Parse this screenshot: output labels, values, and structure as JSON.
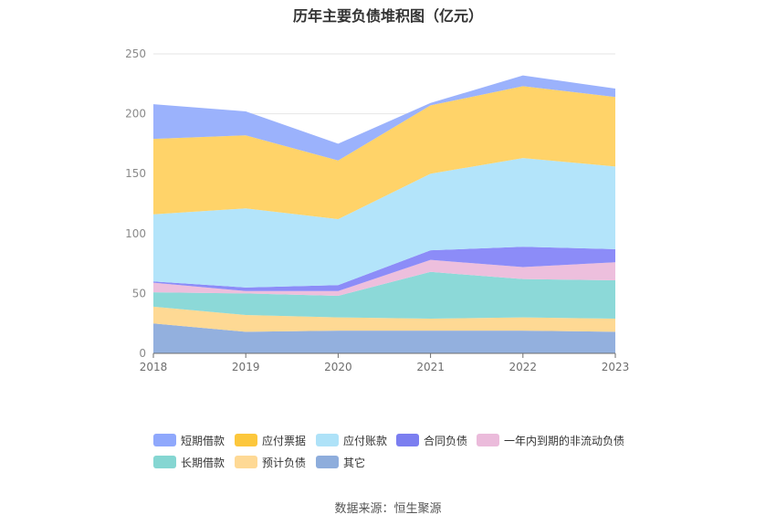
{
  "chart_data": {
    "type": "area",
    "stacked": true,
    "title": "历年主要负债堆积图（亿元）",
    "categories": [
      "2018",
      "2019",
      "2020",
      "2021",
      "2022",
      "2023"
    ],
    "ylim": [
      0,
      250
    ],
    "yticks": [
      0,
      50,
      100,
      150,
      200,
      250
    ],
    "grid": true,
    "legend_position": "bottom",
    "series": [
      {
        "name": "其它",
        "color": "#93b0de",
        "values": [
          25,
          18,
          19,
          19,
          19,
          18
        ]
      },
      {
        "name": "预计负债",
        "color": "#fed994",
        "values": [
          14,
          14,
          11,
          10,
          11,
          11
        ]
      },
      {
        "name": "长期借款",
        "color": "#8cd9d8",
        "values": [
          12,
          18,
          18,
          39,
          32,
          32
        ]
      },
      {
        "name": "一年内到期的非流动负债",
        "color": "#edbfdd",
        "values": [
          8,
          2,
          4,
          10,
          10,
          15
        ]
      },
      {
        "name": "合同负债",
        "color": "#8c8cf8",
        "values": [
          1,
          3,
          5,
          8,
          17,
          11
        ]
      },
      {
        "name": "应付账款",
        "color": "#b3e4fa",
        "values": [
          56,
          66,
          55,
          64,
          74,
          69
        ]
      },
      {
        "name": "应付票据",
        "color": "#ffd369",
        "values": [
          63,
          61,
          49,
          57,
          60,
          58
        ]
      },
      {
        "name": "短期借款",
        "color": "#9bb2fc",
        "values": [
          29,
          20,
          14,
          2,
          9,
          7
        ]
      }
    ]
  },
  "legend": [
    {
      "label": "短期借款",
      "color": "#8fa8fc"
    },
    {
      "label": "应付票据",
      "color": "#fcc73c"
    },
    {
      "label": "应付账款",
      "color": "#aee2f8"
    },
    {
      "label": "合同负债",
      "color": "#7b7ef0"
    },
    {
      "label": "一年内到期的非流动负债",
      "color": "#ebbbdb"
    },
    {
      "label": "长期借款",
      "color": "#85d6d2"
    },
    {
      "label": "预计负债",
      "color": "#fed995"
    },
    {
      "label": "其它",
      "color": "#8eaddc"
    }
  ],
  "source": "数据来源：恒生聚源"
}
